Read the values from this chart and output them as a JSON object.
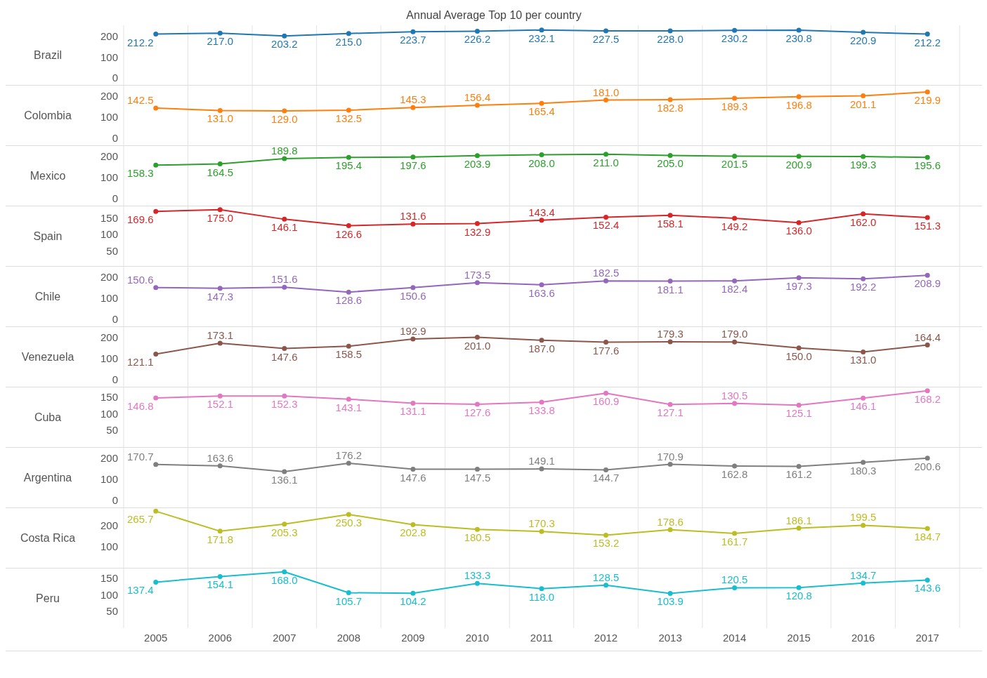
{
  "chart_data": [
    {
      "type": "line",
      "title": "Annual Average Top 10 per country",
      "ylabel": "Brazil",
      "categories": [
        "2005",
        "2006",
        "2007",
        "2008",
        "2009",
        "2010",
        "2011",
        "2012",
        "2013",
        "2014",
        "2015",
        "2016",
        "2017"
      ],
      "values": [
        212.2,
        217.0,
        203.2,
        215.0,
        223.7,
        226.2,
        232.1,
        227.5,
        228.0,
        230.2,
        230.8,
        220.9,
        212.2
      ],
      "value_labels": [
        "212.2",
        "217.0",
        "203.2",
        "215.0",
        "223.7",
        "226.2",
        "232.1",
        "227.5",
        "228.0",
        "230.2",
        "230.8",
        "220.9",
        "212.2"
      ],
      "color": "#1f77b4",
      "ylim": [
        -35,
        255
      ],
      "yticks": [
        0,
        100,
        200
      ],
      "grid": "x",
      "marker": "circle",
      "tick_labels": "y"
    },
    {
      "type": "line",
      "ylabel": "Colombia",
      "categories": [
        "2005",
        "2006",
        "2007",
        "2008",
        "2009",
        "2010",
        "2011",
        "2012",
        "2013",
        "2014",
        "2015",
        "2016",
        "2017"
      ],
      "values": [
        142.5,
        131.0,
        129.0,
        132.5,
        145.3,
        156.4,
        165.4,
        181.0,
        182.8,
        189.3,
        196.8,
        201.1,
        219.9
      ],
      "value_labels": [
        "142.5",
        "131.0",
        "129.0",
        "132.5",
        "145.3",
        "156.4",
        "165.4",
        "181.0",
        "182.8",
        "189.3",
        "196.8",
        "201.1",
        "219.9"
      ],
      "color": "#ff7f0e",
      "ylim": [
        -35,
        250
      ],
      "yticks": [
        0,
        100,
        200
      ],
      "grid": "x",
      "marker": "circle",
      "tick_labels": "y"
    },
    {
      "type": "line",
      "ylabel": "Mexico",
      "categories": [
        "2005",
        "2006",
        "2007",
        "2008",
        "2009",
        "2010",
        "2011",
        "2012",
        "2013",
        "2014",
        "2015",
        "2016",
        "2017"
      ],
      "values": [
        158.3,
        164.5,
        189.8,
        195.4,
        197.6,
        203.9,
        208.0,
        211.0,
        205.0,
        201.5,
        200.9,
        199.3,
        195.6
      ],
      "value_labels": [
        "158.3",
        "164.5",
        "189.8",
        "195.4",
        "197.6",
        "203.9",
        "208.0",
        "211.0",
        "205.0",
        "201.5",
        "200.9",
        "199.3",
        "195.6"
      ],
      "color": "#2ca02c",
      "ylim": [
        -35,
        250
      ],
      "yticks": [
        0,
        100,
        200
      ],
      "grid": "x",
      "marker": "circle",
      "tick_labels": "y"
    },
    {
      "type": "line",
      "ylabel": "Spain",
      "categories": [
        "2005",
        "2006",
        "2007",
        "2008",
        "2009",
        "2010",
        "2011",
        "2012",
        "2013",
        "2014",
        "2015",
        "2016",
        "2017"
      ],
      "values": [
        169.6,
        175.0,
        146.1,
        126.6,
        131.6,
        132.9,
        143.4,
        152.4,
        158.1,
        149.2,
        136.0,
        162.0,
        151.3
      ],
      "value_labels": [
        "169.6",
        "175.0",
        "146.1",
        "126.6",
        "131.6",
        "132.9",
        "143.4",
        "152.4",
        "158.1",
        "149.2",
        "136.0",
        "162.0",
        "151.3"
      ],
      "color": "#d62728",
      "ylim": [
        5,
        185
      ],
      "yticks": [
        50,
        100,
        150
      ],
      "grid": "x",
      "marker": "circle",
      "tick_labels": "y"
    },
    {
      "type": "line",
      "ylabel": "Chile",
      "categories": [
        "2005",
        "2006",
        "2007",
        "2008",
        "2009",
        "2010",
        "2011",
        "2012",
        "2013",
        "2014",
        "2015",
        "2016",
        "2017"
      ],
      "values": [
        150.6,
        147.3,
        151.6,
        128.6,
        150.6,
        173.5,
        163.6,
        182.5,
        181.1,
        182.4,
        197.3,
        192.2,
        208.9
      ],
      "value_labels": [
        "150.6",
        "147.3",
        "151.6",
        "128.6",
        "150.6",
        "173.5",
        "163.6",
        "182.5",
        "181.1",
        "182.4",
        "197.3",
        "192.2",
        "208.9"
      ],
      "color": "#9467bd",
      "ylim": [
        -35,
        250
      ],
      "yticks": [
        0,
        100,
        200
      ],
      "grid": "x",
      "marker": "circle",
      "tick_labels": "y"
    },
    {
      "type": "line",
      "ylabel": "Venezuela",
      "categories": [
        "2005",
        "2006",
        "2007",
        "2008",
        "2009",
        "2010",
        "2011",
        "2012",
        "2013",
        "2014",
        "2015",
        "2016",
        "2017"
      ],
      "values": [
        121.1,
        173.1,
        147.6,
        158.5,
        192.9,
        201.0,
        187.0,
        177.6,
        179.3,
        179.0,
        150.0,
        131.0,
        164.4
      ],
      "value_labels": [
        "121.1",
        "173.1",
        "147.6",
        "158.5",
        "192.9",
        "201.0",
        "187.0",
        "177.6",
        "179.3",
        "179.0",
        "150.0",
        "131.0",
        "164.4"
      ],
      "color": "#8c564b",
      "ylim": [
        -35,
        250
      ],
      "yticks": [
        0,
        100,
        200
      ],
      "grid": "x",
      "marker": "circle",
      "tick_labels": "y"
    },
    {
      "type": "line",
      "ylabel": "Cuba",
      "categories": [
        "2005",
        "2006",
        "2007",
        "2008",
        "2009",
        "2010",
        "2011",
        "2012",
        "2013",
        "2014",
        "2015",
        "2016",
        "2017"
      ],
      "values": [
        146.8,
        152.1,
        152.3,
        143.1,
        131.1,
        127.6,
        133.8,
        160.9,
        127.1,
        130.5,
        125.1,
        146.1,
        168.2
      ],
      "value_labels": [
        "146.8",
        "152.1",
        "152.3",
        "143.1",
        "131.1",
        "127.6",
        "133.8",
        "160.9",
        "127.1",
        "130.5",
        "125.1",
        "146.1",
        "168.2"
      ],
      "color": "#e377c2",
      "ylim": [
        0,
        178
      ],
      "yticks": [
        50,
        100,
        150
      ],
      "grid": "x",
      "marker": "circle",
      "tick_labels": "y"
    },
    {
      "type": "line",
      "ylabel": "Argentina",
      "categories": [
        "2005",
        "2006",
        "2007",
        "2008",
        "2009",
        "2010",
        "2011",
        "2012",
        "2013",
        "2014",
        "2015",
        "2016",
        "2017"
      ],
      "values": [
        170.7,
        163.6,
        136.1,
        176.2,
        147.6,
        147.5,
        149.1,
        144.7,
        170.9,
        162.8,
        161.2,
        180.3,
        200.6
      ],
      "value_labels": [
        "170.7",
        "163.6",
        "136.1",
        "176.2",
        "147.6",
        "147.5",
        "149.1",
        "144.7",
        "170.9",
        "162.8",
        "161.2",
        "180.3",
        "200.6"
      ],
      "color": "#7f7f7f",
      "ylim": [
        -35,
        250
      ],
      "yticks": [
        0,
        100,
        200
      ],
      "grid": "x",
      "marker": "circle",
      "tick_labels": "y"
    },
    {
      "type": "line",
      "ylabel": "Costa Rica",
      "categories": [
        "2005",
        "2006",
        "2007",
        "2008",
        "2009",
        "2010",
        "2011",
        "2012",
        "2013",
        "2014",
        "2015",
        "2016",
        "2017"
      ],
      "values": [
        265.7,
        171.8,
        205.3,
        250.3,
        202.8,
        180.5,
        170.3,
        153.2,
        178.6,
        161.7,
        186.1,
        199.5,
        184.7
      ],
      "value_labels": [
        "265.7",
        "171.8",
        "205.3",
        "250.3",
        "202.8",
        "180.5",
        "170.3",
        "153.2",
        "178.6",
        "161.7",
        "186.1",
        "199.5",
        "184.7"
      ],
      "color": "#bcbd22",
      "ylim": [
        0,
        280
      ],
      "yticks": [
        100,
        200
      ],
      "grid": "x",
      "marker": "circle",
      "tick_labels": "y"
    },
    {
      "type": "line",
      "ylabel": "Peru",
      "categories": [
        "2005",
        "2006",
        "2007",
        "2008",
        "2009",
        "2010",
        "2011",
        "2012",
        "2013",
        "2014",
        "2015",
        "2016",
        "2017"
      ],
      "values": [
        137.4,
        154.1,
        168.0,
        105.7,
        104.2,
        133.3,
        118.0,
        128.5,
        103.9,
        120.5,
        120.8,
        134.7,
        143.6
      ],
      "value_labels": [
        "137.4",
        "154.1",
        "168.0",
        "105.7",
        "104.2",
        "133.3",
        "118.0",
        "128.5",
        "103.9",
        "120.5",
        "120.8",
        "134.7",
        "143.6"
      ],
      "color": "#17becf",
      "ylim": [
        0,
        178
      ],
      "yticks": [
        50,
        100,
        150
      ],
      "grid": "x",
      "marker": "circle"
    }
  ]
}
